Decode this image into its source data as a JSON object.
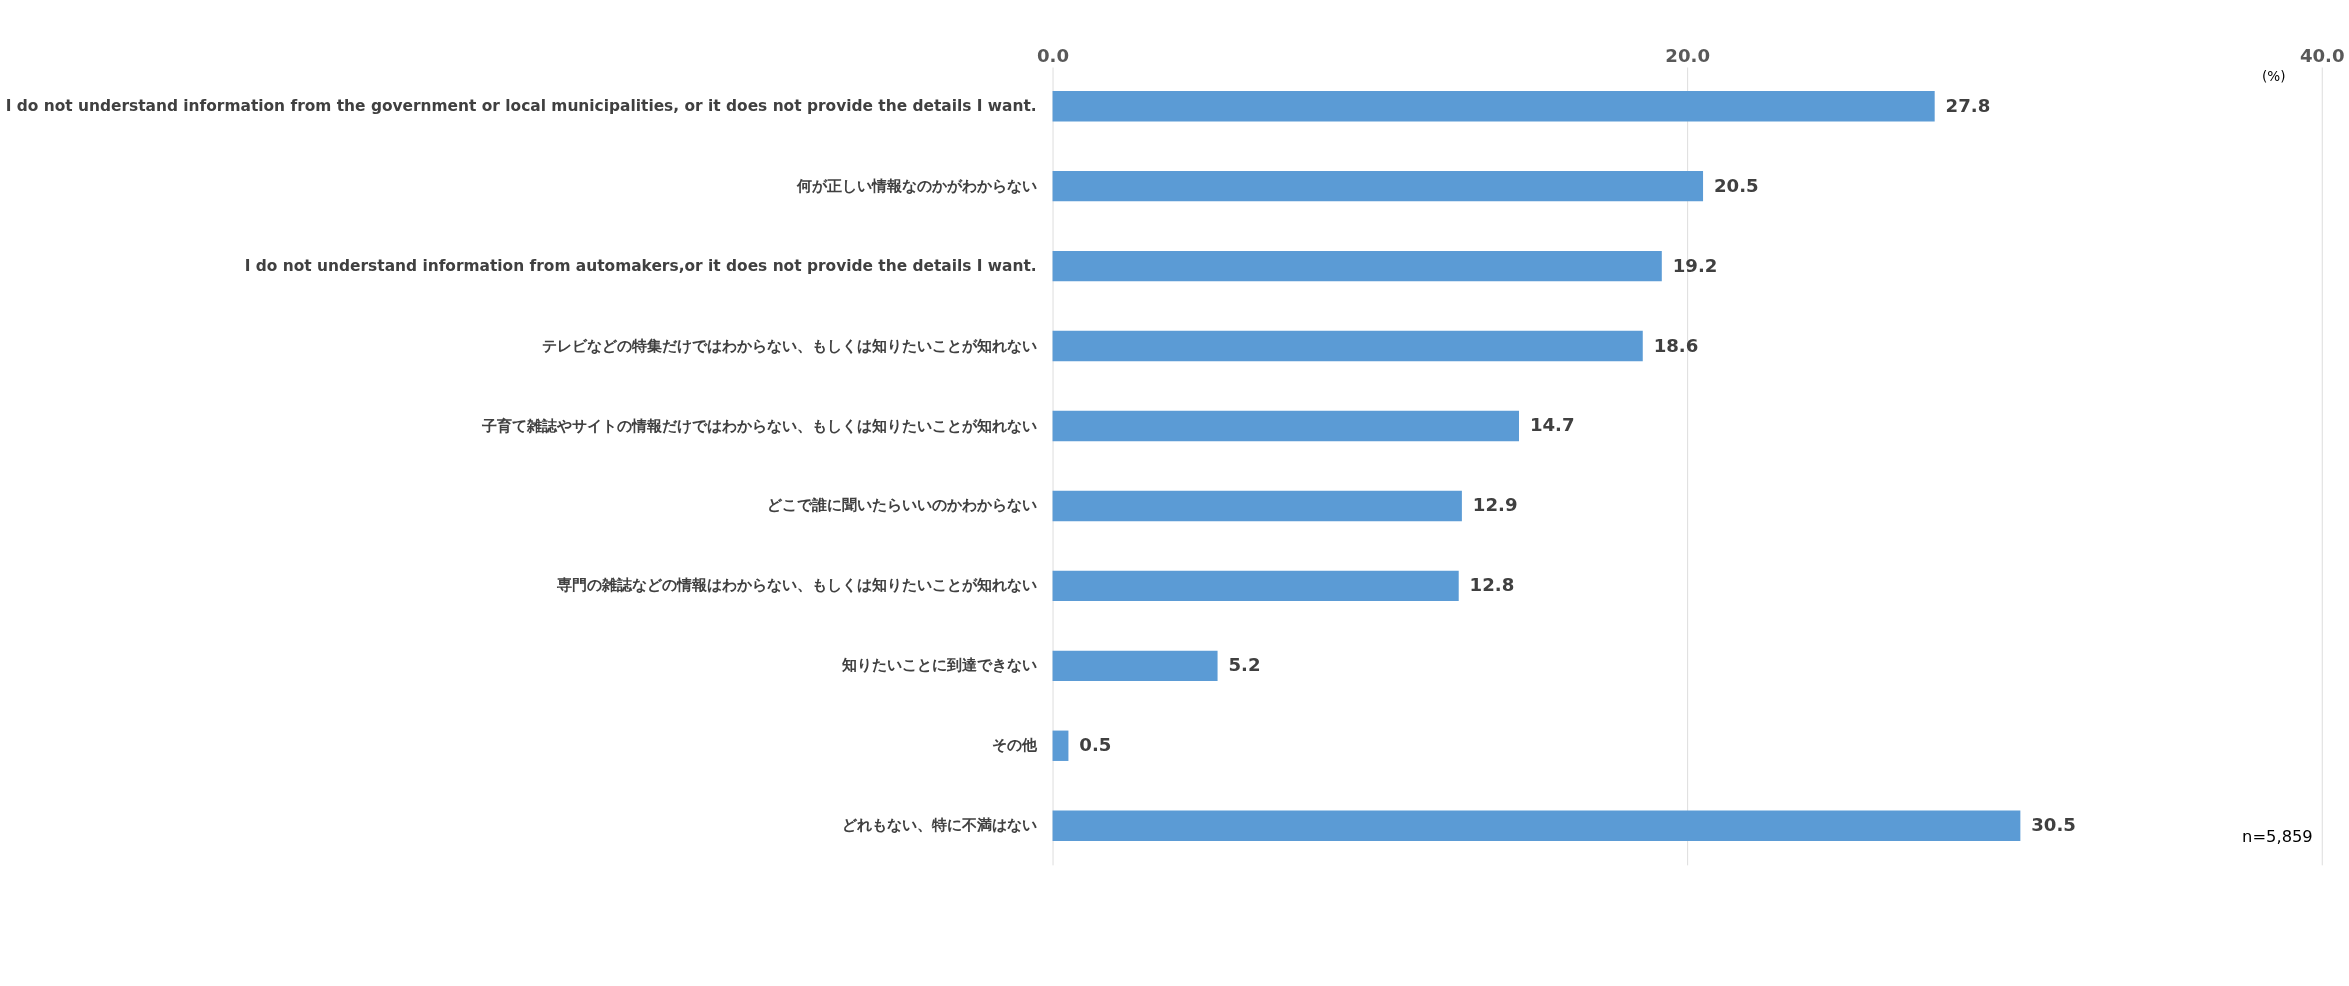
{
  "chart_data": {
    "type": "bar",
    "orientation": "horizontal",
    "categories": [
      "I do not understand information from the government or local municipalities, or it does not provide the details I want.",
      "何が正しい情報なのかがわからない",
      "I do not understand information from automakers,or it does not provide the details I want.",
      "テレビなどの特集だけではわからない、もしくは知りたいことが知れない",
      "子育て雑誌やサイトの情報だけではわからない、もしくは知りたいことが知れない",
      "どこで誰に聞いたらいいのかわからない",
      "専門の雑誌などの情報はわからない、もしくは知りたいことが知れない",
      "知りたいことに到達できない",
      "その他",
      "どれもない、特に不満はない"
    ],
    "values": [
      27.8,
      20.5,
      19.2,
      18.6,
      14.7,
      12.9,
      12.8,
      5.2,
      0.5,
      30.5
    ],
    "color": "#5b9bd5",
    "xlim": [
      0,
      40
    ],
    "xticks": [
      {
        "value": 0,
        "label": "0.0"
      },
      {
        "value": 20,
        "label": "20.0"
      },
      {
        "value": 40,
        "label": "40.0"
      }
    ],
    "grid": "x",
    "data_labels": true,
    "annotations": [
      "(%)",
      "n=5,859"
    ]
  }
}
